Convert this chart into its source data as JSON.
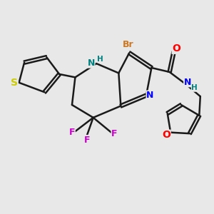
{
  "bg_color": "#e8e8e8",
  "bond_color": "#1a1a1a",
  "bond_width": 1.8,
  "atom_colors": {
    "Br": "#cc7722",
    "N": "#0000ff",
    "NH": "#008080",
    "O": "#ff0000",
    "S": "#cccc00",
    "F": "#cc00cc",
    "C": "#1a1a1a",
    "H": "#008080"
  },
  "font_size": 9,
  "fig_size": [
    3.0,
    3.0
  ],
  "dpi": 100
}
